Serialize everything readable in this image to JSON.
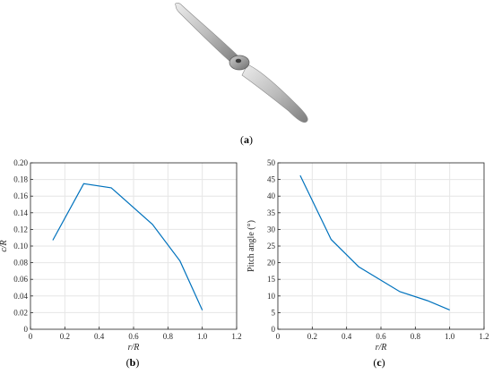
{
  "figure": {
    "panel_labels": {
      "a": "a",
      "b": "b",
      "c": "c"
    }
  },
  "colors": {
    "series": "#0072BD",
    "propeller_light": "#d9d9d9",
    "propeller_dark": "#7a7a7a"
  },
  "chart_data": [
    {
      "panel": "b",
      "type": "line",
      "xlabel": "r/R",
      "ylabel": "c/R",
      "xlim": [
        0,
        1.2
      ],
      "ylim": [
        0,
        0.2
      ],
      "x_ticks": [
        "0",
        "0.2",
        "0.4",
        "0.6",
        "0.8",
        "1.0",
        "1.2"
      ],
      "y_ticks": [
        "0",
        "0.02",
        "0.04",
        "0.06",
        "0.08",
        "0.10",
        "0.12",
        "0.14",
        "0.16",
        "0.18",
        "0.20"
      ],
      "grid": true,
      "series": [
        {
          "x": [
            0.13,
            0.31,
            0.47,
            0.71,
            0.87,
            1.0
          ],
          "y": [
            0.107,
            0.175,
            0.17,
            0.126,
            0.082,
            0.023
          ]
        }
      ]
    },
    {
      "panel": "c",
      "type": "line",
      "xlabel": "r/R",
      "ylabel": "Pitch angle (°)",
      "xlim": [
        0,
        1.2
      ],
      "ylim": [
        0,
        50
      ],
      "x_ticks": [
        "0",
        "0.2",
        "0.4",
        "0.6",
        "0.8",
        "1.0",
        "1.2"
      ],
      "y_ticks": [
        "0",
        "5",
        "10",
        "15",
        "20",
        "25",
        "30",
        "35",
        "40",
        "45",
        "50"
      ],
      "grid": true,
      "series": [
        {
          "x": [
            0.13,
            0.31,
            0.47,
            0.71,
            0.87,
            1.0
          ],
          "y": [
            46.2,
            27.0,
            18.8,
            11.3,
            8.6,
            5.8
          ]
        }
      ]
    }
  ]
}
